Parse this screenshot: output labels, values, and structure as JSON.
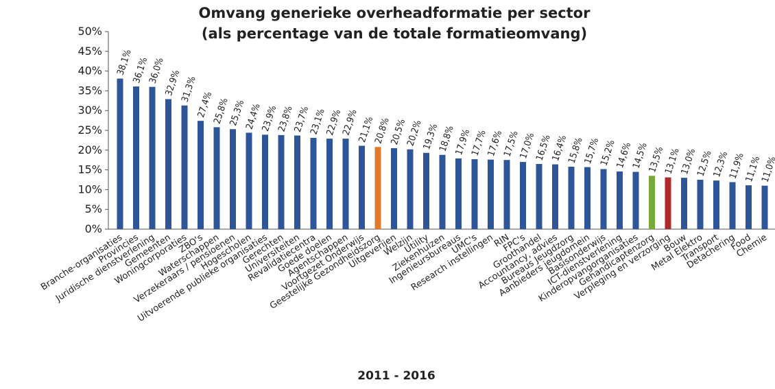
{
  "chart_data": {
    "type": "bar",
    "title": "Omvang generieke overheadformatie per sector",
    "subtitle": "(als percentage van de totale formatieomvang)",
    "xlabel": "2011 - 2016",
    "ylabel": "",
    "ylim": [
      0,
      50
    ],
    "yticks": [
      "0%",
      "5%",
      "10%",
      "15%",
      "20%",
      "25%",
      "30%",
      "35%",
      "40%",
      "45%",
      "50%"
    ],
    "grid": false,
    "legend": "none",
    "categories": [
      "Branche-organisaties",
      "Provincies",
      "Juridische dienstverlening",
      "Gemeenten",
      "Woningcorporaties",
      "ZBO's",
      "Waterschappen",
      "Verzekeraars / pensioenen",
      "Hogescholen",
      "Uitvoerende publieke organisaties",
      "Gerechten",
      "Universiteiten",
      "Revalidatiecentra",
      "Goede doelen",
      "Agentschappen",
      "Voortgezet Onderwijs",
      "Geestelijke Gezondheidszorg",
      "Uitgeverijen",
      "Welzijn",
      "Utility",
      "Ziekenhuizen",
      "Ingenieursbureaus",
      "UMC's",
      "Research instellingen",
      "RIN",
      "FPC's",
      "Groothandel",
      "Accountancy, advies",
      "Bureaus Jeugdzorg",
      "Aanbieders jeugdomein",
      "Basisonderwijs",
      "ICT-dienstverlening",
      "Kinderopvangorganisaties",
      "Gehandicaptenzorg",
      "Verpleging en verzorging",
      "Bouw",
      "Metal Elektro",
      "Transport",
      "Detachering",
      "Food",
      "Chemie"
    ],
    "value_labels": [
      "38,1%",
      "36,1%",
      "36,0%",
      "32,9%",
      "31,3%",
      "27,4%",
      "25,8%",
      "25,3%",
      "24,4%",
      "23,9%",
      "23,8%",
      "23,7%",
      "23,1%",
      "22,9%",
      "22,9%",
      "21,1%",
      "20,8%",
      "20,5%",
      "20,2%",
      "19,3%",
      "18,8%",
      "17,9%",
      "17,7%",
      "17,6%",
      "17,5%",
      "17,0%",
      "16,5%",
      "16,4%",
      "15,8%",
      "15,7%",
      "15,2%",
      "14,6%",
      "14,5%",
      "13,5%",
      "13,1%",
      "13,0%",
      "12,5%",
      "12,3%",
      "11,9%",
      "11,1%",
      "11,0%"
    ],
    "values": [
      38.1,
      36.1,
      36.0,
      32.9,
      31.3,
      27.4,
      25.8,
      25.3,
      24.4,
      23.9,
      23.8,
      23.7,
      23.1,
      22.9,
      22.9,
      21.1,
      20.8,
      20.5,
      20.2,
      19.3,
      18.8,
      17.9,
      17.7,
      17.6,
      17.5,
      17.0,
      16.5,
      16.4,
      15.8,
      15.7,
      15.2,
      14.6,
      14.5,
      13.5,
      13.1,
      13.0,
      12.5,
      12.3,
      11.9,
      11.1,
      11.0
    ],
    "colors": {
      "default": "#2e5597",
      "highlight": {
        "Geestelijke Gezondheidszorg": "#e07b2c",
        "Gehandicaptenzorg": "#77a83a",
        "Verpleging en verzorging": "#b0282c"
      },
      "axis": "#555555",
      "text": "#222222"
    }
  }
}
